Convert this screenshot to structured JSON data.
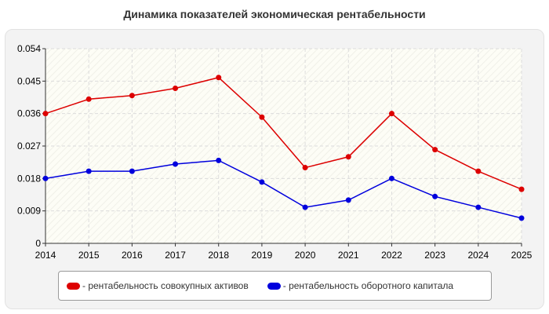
{
  "title": "Динамика показателей экономическая рентабельности",
  "legend": {
    "item1": "- рентабельность совокупных активов",
    "item2": "- рентабельность оборотного капитала"
  },
  "colors": {
    "series1": "#dd0000",
    "series2": "#0000dd"
  },
  "chart_data": {
    "type": "line",
    "title": "Динамика показателей экономическая рентабельности",
    "x": [
      "2014",
      "2015",
      "2016",
      "2017",
      "2018",
      "2019",
      "2020",
      "2021",
      "2022",
      "2023",
      "2024",
      "2025"
    ],
    "series": [
      {
        "name": "- рентабельность совокупных активов",
        "values": [
          0.036,
          0.04,
          0.041,
          0.043,
          0.046,
          0.035,
          0.021,
          0.024,
          0.036,
          0.026,
          0.02,
          0.015
        ]
      },
      {
        "name": "- рентабельность оборотного капитала",
        "values": [
          0.018,
          0.02,
          0.02,
          0.022,
          0.023,
          0.017,
          0.01,
          0.012,
          0.018,
          0.013,
          0.01,
          0.007
        ]
      }
    ],
    "yticks": [
      "0",
      "0.009",
      "0.018",
      "0.027",
      "0.036",
      "0.045",
      "0.054"
    ],
    "ylim": [
      0,
      0.054
    ],
    "grid": true,
    "legend_position": "bottom"
  }
}
